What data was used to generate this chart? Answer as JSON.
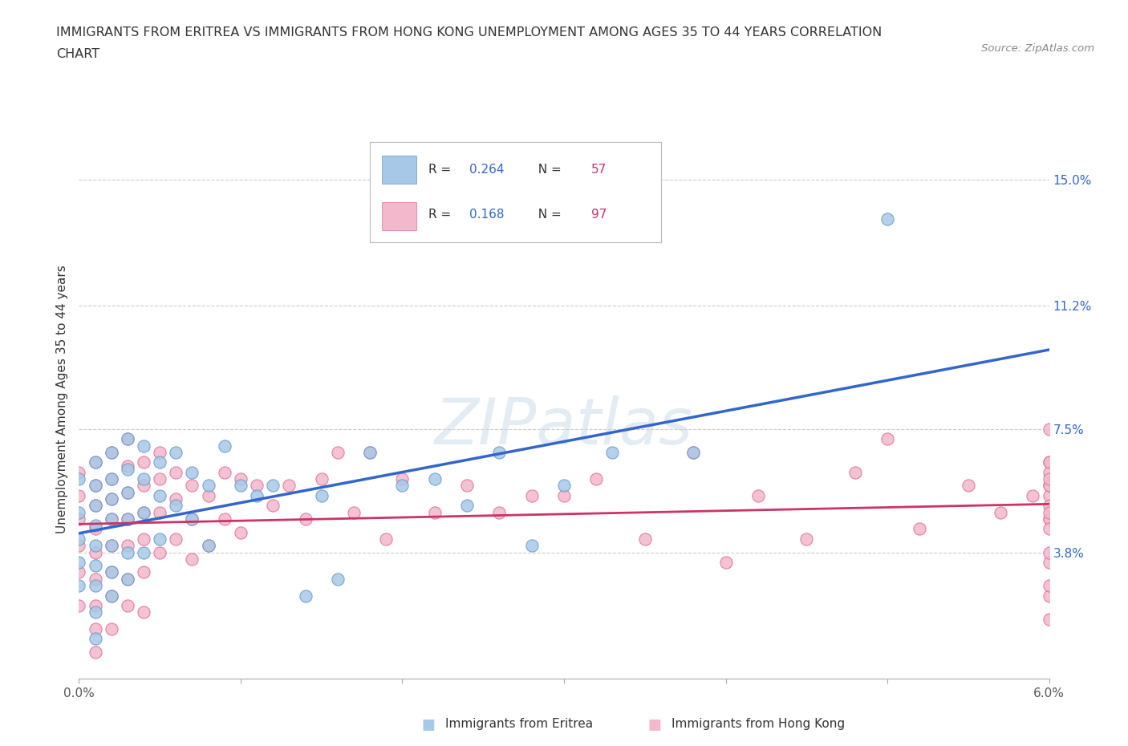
{
  "title_line1": "IMMIGRANTS FROM ERITREA VS IMMIGRANTS FROM HONG KONG UNEMPLOYMENT AMONG AGES 35 TO 44 YEARS CORRELATION",
  "title_line2": "CHART",
  "source": "Source: ZipAtlas.com",
  "ylabel": "Unemployment Among Ages 35 to 44 years",
  "xmin": 0.0,
  "xmax": 0.06,
  "ymin": 0.0,
  "ymax": 0.168,
  "yticks": [
    0.038,
    0.075,
    0.112,
    0.15
  ],
  "ytick_labels": [
    "3.8%",
    "7.5%",
    "11.2%",
    "15.0%"
  ],
  "xtick_positions": [
    0.0,
    0.01,
    0.02,
    0.03,
    0.04,
    0.05,
    0.06
  ],
  "x_end_labels": {
    "0": "0.0%",
    "6": "6.0%"
  },
  "eritrea_color": "#a8c8e8",
  "eritrea_edge_color": "#6699cc",
  "hongkong_color": "#f4b8cc",
  "hongkong_edge_color": "#e07090",
  "line_eritrea_color": "#3366cc",
  "line_hongkong_color": "#cc3366",
  "R_eritrea": 0.264,
  "N_eritrea": 57,
  "R_hongkong": 0.168,
  "N_hongkong": 97,
  "watermark": "ZIPatlas",
  "legend_text_color": "#333333",
  "legend_R_value_color": "#3366cc",
  "legend_N_value_color": "#cc3366",
  "eritrea_scatter_x": [
    0.0,
    0.0,
    0.0,
    0.0,
    0.0,
    0.001,
    0.001,
    0.001,
    0.001,
    0.001,
    0.001,
    0.001,
    0.001,
    0.001,
    0.002,
    0.002,
    0.002,
    0.002,
    0.002,
    0.002,
    0.002,
    0.003,
    0.003,
    0.003,
    0.003,
    0.003,
    0.003,
    0.004,
    0.004,
    0.004,
    0.004,
    0.005,
    0.005,
    0.005,
    0.006,
    0.006,
    0.007,
    0.007,
    0.008,
    0.008,
    0.009,
    0.01,
    0.011,
    0.012,
    0.014,
    0.015,
    0.016,
    0.018,
    0.02,
    0.022,
    0.024,
    0.026,
    0.028,
    0.03,
    0.033,
    0.038,
    0.05
  ],
  "eritrea_scatter_y": [
    0.06,
    0.05,
    0.042,
    0.035,
    0.028,
    0.065,
    0.058,
    0.052,
    0.046,
    0.04,
    0.034,
    0.028,
    0.02,
    0.012,
    0.068,
    0.06,
    0.054,
    0.048,
    0.04,
    0.032,
    0.025,
    0.072,
    0.063,
    0.056,
    0.048,
    0.038,
    0.03,
    0.07,
    0.06,
    0.05,
    0.038,
    0.065,
    0.055,
    0.042,
    0.068,
    0.052,
    0.062,
    0.048,
    0.058,
    0.04,
    0.07,
    0.058,
    0.055,
    0.058,
    0.025,
    0.055,
    0.03,
    0.068,
    0.058,
    0.06,
    0.052,
    0.068,
    0.04,
    0.058,
    0.068,
    0.068,
    0.138
  ],
  "hongkong_scatter_x": [
    0.0,
    0.0,
    0.0,
    0.0,
    0.0,
    0.0,
    0.001,
    0.001,
    0.001,
    0.001,
    0.001,
    0.001,
    0.001,
    0.001,
    0.001,
    0.002,
    0.002,
    0.002,
    0.002,
    0.002,
    0.002,
    0.002,
    0.002,
    0.003,
    0.003,
    0.003,
    0.003,
    0.003,
    0.003,
    0.003,
    0.004,
    0.004,
    0.004,
    0.004,
    0.004,
    0.004,
    0.005,
    0.005,
    0.005,
    0.005,
    0.006,
    0.006,
    0.006,
    0.007,
    0.007,
    0.007,
    0.008,
    0.008,
    0.009,
    0.009,
    0.01,
    0.01,
    0.011,
    0.012,
    0.013,
    0.014,
    0.015,
    0.016,
    0.017,
    0.018,
    0.019,
    0.02,
    0.022,
    0.024,
    0.026,
    0.028,
    0.03,
    0.032,
    0.035,
    0.038,
    0.04,
    0.042,
    0.045,
    0.048,
    0.05,
    0.052,
    0.055,
    0.057,
    0.059,
    0.06,
    0.06,
    0.06,
    0.06,
    0.06,
    0.06,
    0.06,
    0.06,
    0.06,
    0.06,
    0.06,
    0.06,
    0.06,
    0.06,
    0.06,
    0.06,
    0.06,
    0.06
  ],
  "hongkong_scatter_y": [
    0.062,
    0.055,
    0.048,
    0.04,
    0.032,
    0.022,
    0.065,
    0.058,
    0.052,
    0.045,
    0.038,
    0.03,
    0.022,
    0.015,
    0.008,
    0.068,
    0.06,
    0.054,
    0.048,
    0.04,
    0.032,
    0.025,
    0.015,
    0.072,
    0.064,
    0.056,
    0.048,
    0.04,
    0.03,
    0.022,
    0.065,
    0.058,
    0.05,
    0.042,
    0.032,
    0.02,
    0.068,
    0.06,
    0.05,
    0.038,
    0.062,
    0.054,
    0.042,
    0.058,
    0.048,
    0.036,
    0.055,
    0.04,
    0.062,
    0.048,
    0.06,
    0.044,
    0.058,
    0.052,
    0.058,
    0.048,
    0.06,
    0.068,
    0.05,
    0.068,
    0.042,
    0.06,
    0.05,
    0.058,
    0.05,
    0.055,
    0.055,
    0.06,
    0.042,
    0.068,
    0.035,
    0.055,
    0.042,
    0.062,
    0.072,
    0.045,
    0.058,
    0.05,
    0.055,
    0.075,
    0.065,
    0.055,
    0.048,
    0.035,
    0.025,
    0.062,
    0.048,
    0.058,
    0.038,
    0.045,
    0.052,
    0.028,
    0.065,
    0.05,
    0.018,
    0.058,
    0.06
  ]
}
